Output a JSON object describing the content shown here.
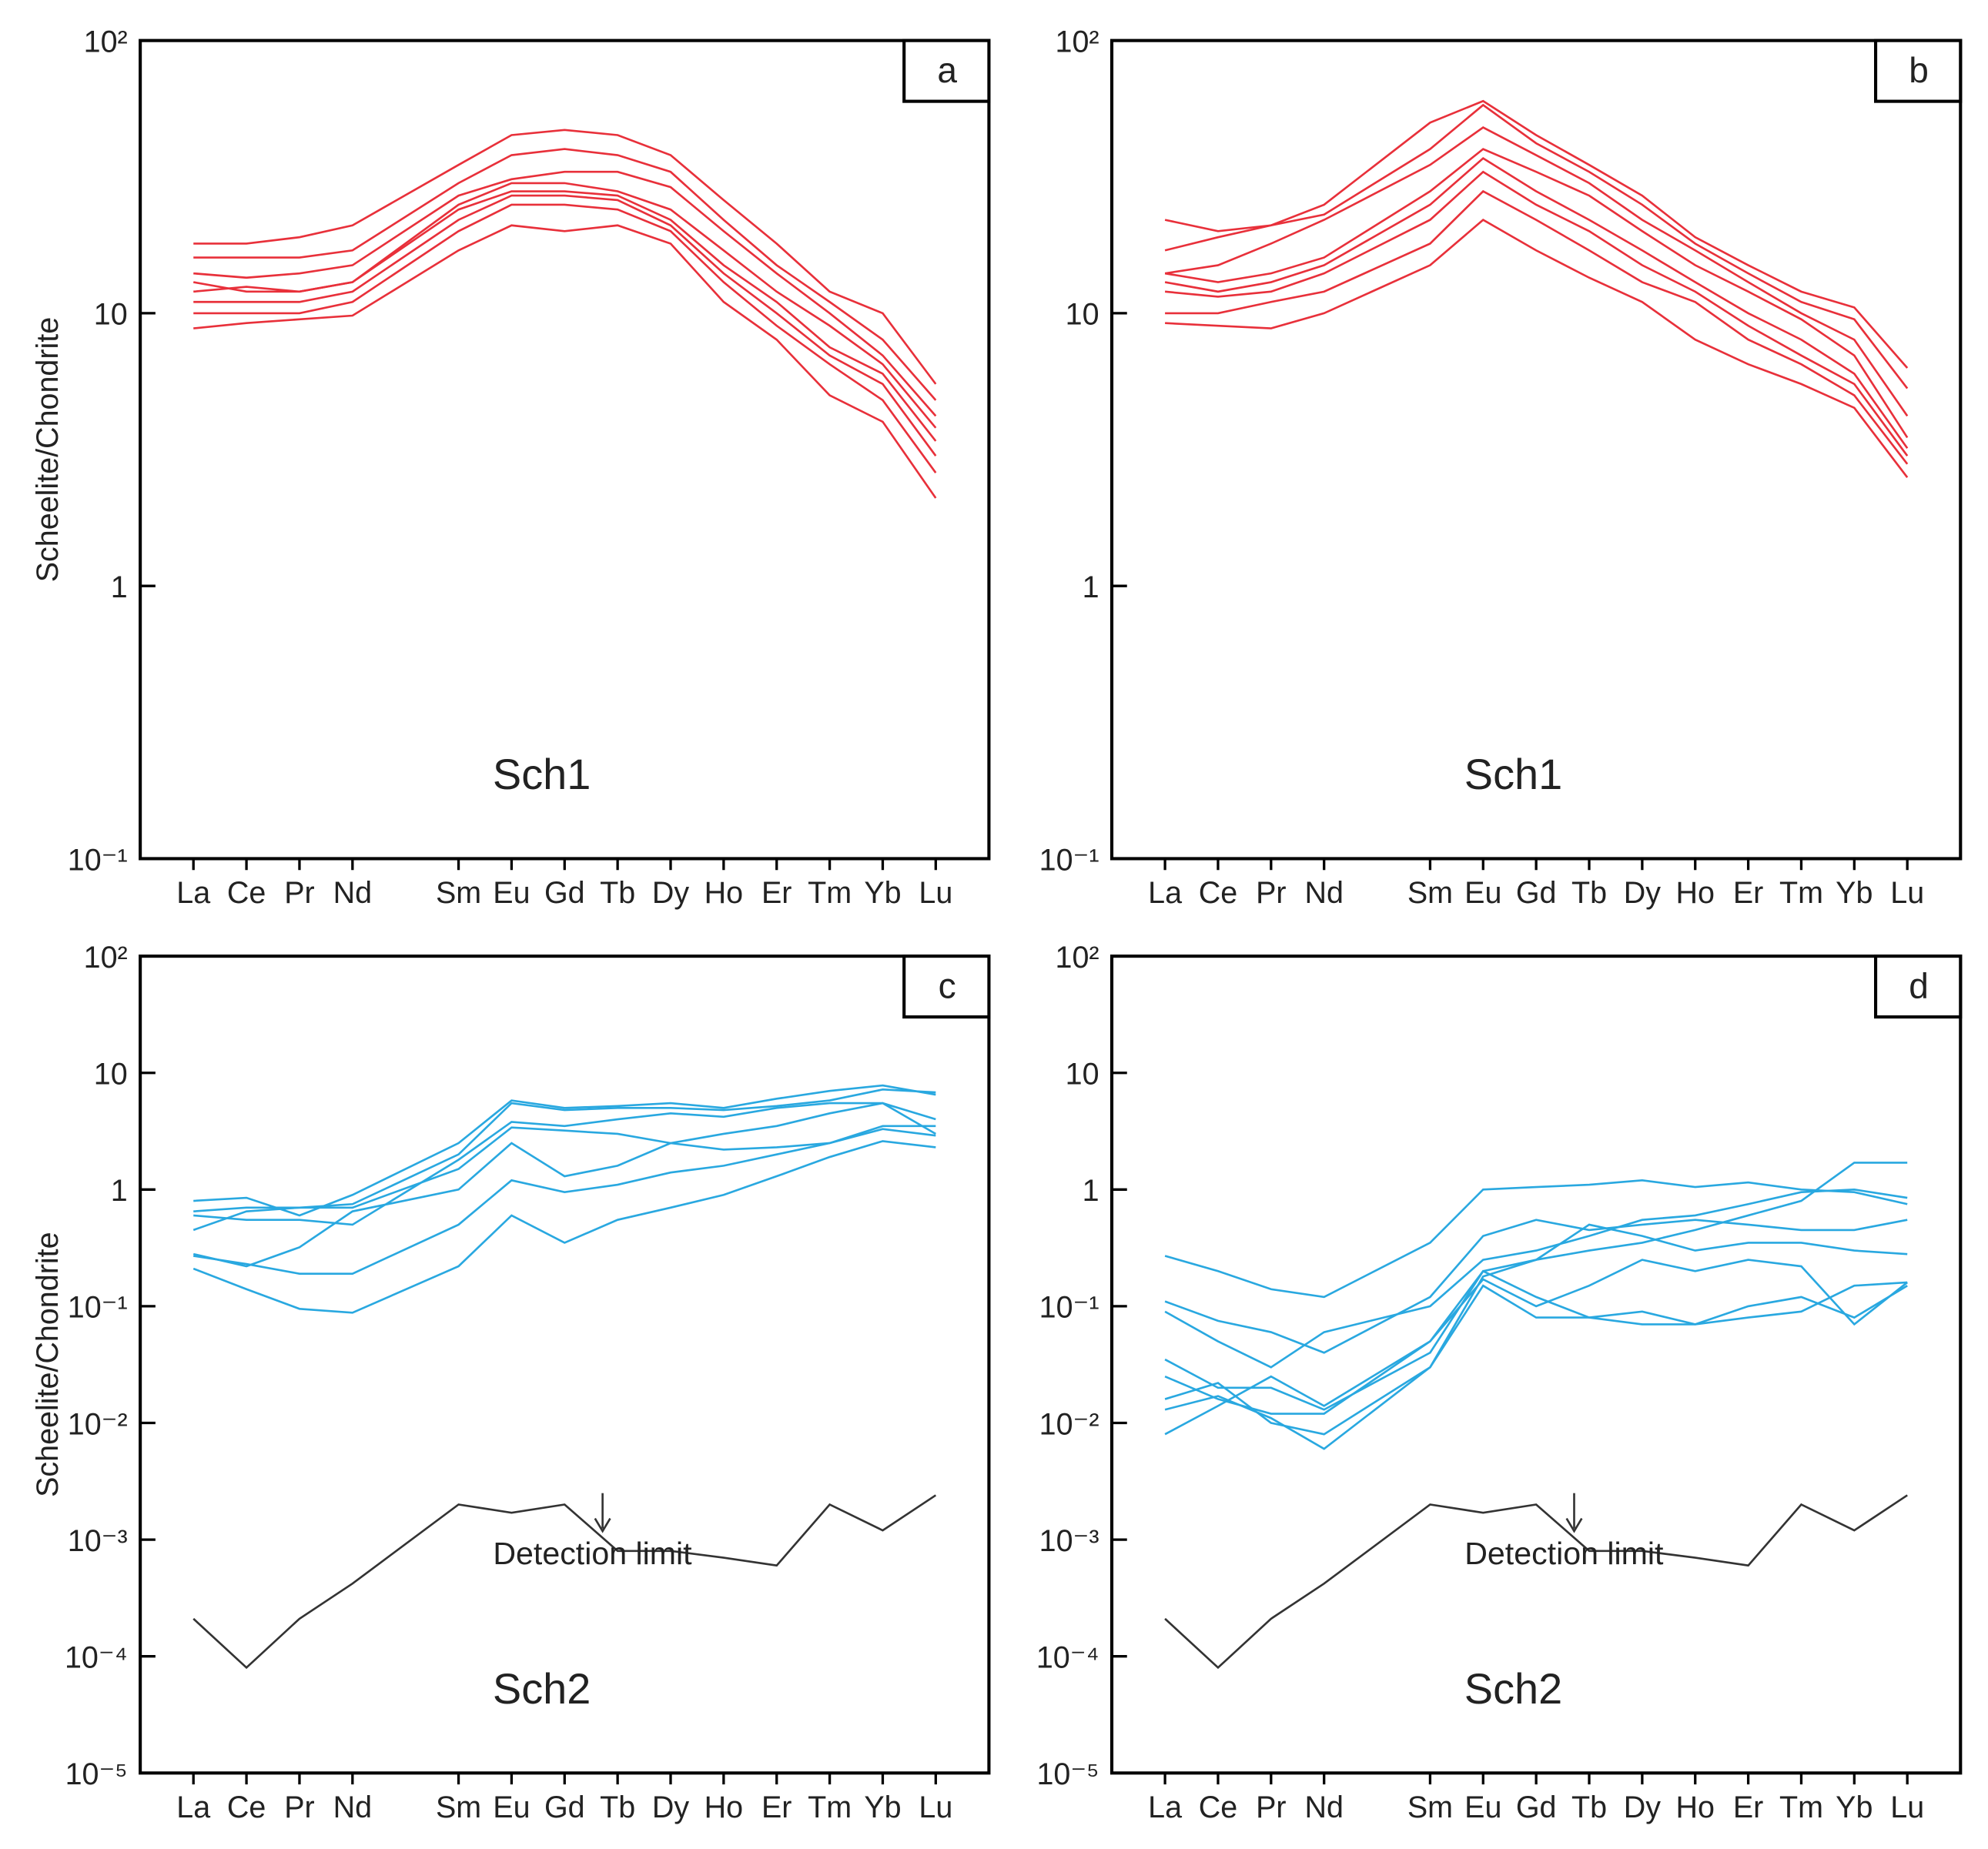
{
  "chart_data": [
    {
      "type": "line",
      "panel_label": "a",
      "label": "Sch1",
      "ylabel": "Scheelite/Chondrite",
      "log_scale": true,
      "categories": [
        "La",
        "Ce",
        "Pr",
        "Nd",
        "Sm",
        "Eu",
        "Gd",
        "Tb",
        "Dy",
        "Ho",
        "Er",
        "Tm",
        "Yb",
        "Lu"
      ],
      "ylim": [
        0.1,
        100
      ],
      "yticks": [
        {
          "value": 0.1,
          "label": "10⁻¹"
        },
        1,
        10,
        {
          "value": 100,
          "label": "10²"
        }
      ],
      "series": [
        {
          "color": "#e8303a",
          "values": [
            18,
            18,
            19,
            21,
            35,
            45,
            47,
            45,
            38,
            26,
            18,
            12,
            10,
            5.5
          ]
        },
        {
          "color": "#e8303a",
          "values": [
            16,
            16,
            16,
            17,
            30,
            38,
            40,
            38,
            33,
            22,
            15,
            11,
            8,
            4.8
          ]
        },
        {
          "color": "#e8303a",
          "values": [
            14,
            13.5,
            14,
            15,
            27,
            31,
            33,
            33,
            29,
            20,
            14,
            10,
            7,
            4.2
          ]
        },
        {
          "color": "#e8303a",
          "values": [
            13,
            12,
            12,
            13,
            25,
            30,
            30,
            28,
            24,
            17,
            12,
            9,
            6.5,
            3.8
          ]
        },
        {
          "color": "#e8303a",
          "values": [
            12,
            12.5,
            12,
            13,
            24,
            28,
            28,
            27,
            22,
            15,
            11,
            7.5,
            6,
            3.4
          ]
        },
        {
          "color": "#e8303a",
          "values": [
            11,
            11,
            11,
            12,
            22,
            27,
            27,
            26,
            21,
            14,
            10,
            7,
            5.5,
            3
          ]
        },
        {
          "color": "#e8303a",
          "values": [
            10,
            10,
            10,
            11,
            20,
            25,
            25,
            24,
            20,
            13,
            9,
            6.5,
            4.8,
            2.6
          ]
        },
        {
          "color": "#e8303a",
          "values": [
            8.8,
            9.2,
            9.5,
            9.8,
            17,
            21,
            20,
            21,
            18,
            11,
            8,
            5,
            4,
            2.1
          ]
        }
      ]
    },
    {
      "type": "line",
      "panel_label": "b",
      "label": "Sch1",
      "log_scale": true,
      "categories": [
        "La",
        "Ce",
        "Pr",
        "Nd",
        "Sm",
        "Eu",
        "Gd",
        "Tb",
        "Dy",
        "Ho",
        "Er",
        "Tm",
        "Yb",
        "Lu"
      ],
      "ylim": [
        0.1,
        100
      ],
      "yticks": [
        {
          "value": 0.1,
          "label": "10⁻¹"
        },
        1,
        10,
        {
          "value": 100,
          "label": "10²"
        }
      ],
      "series": [
        {
          "color": "#e8303a",
          "values": [
            22,
            20,
            21,
            25,
            50,
            60,
            45,
            35,
            27,
            19,
            15,
            12,
            10.5,
            6.3
          ]
        },
        {
          "color": "#e8303a",
          "values": [
            17,
            19,
            21,
            23,
            40,
            58,
            42,
            33,
            25,
            18,
            14,
            11,
            9.5,
            5.3
          ]
        },
        {
          "color": "#e8303a",
          "values": [
            14,
            15,
            18,
            22,
            35,
            48,
            38,
            30,
            22,
            17,
            13,
            10,
            8,
            4.2
          ]
        },
        {
          "color": "#e8303a",
          "values": [
            14,
            13,
            14,
            16,
            28,
            40,
            33,
            27,
            20,
            15,
            12,
            9.5,
            7,
            3.5
          ]
        },
        {
          "color": "#e8303a",
          "values": [
            13,
            12,
            13,
            15,
            25,
            37,
            28,
            22,
            17,
            13,
            10,
            8,
            6,
            3.2
          ]
        },
        {
          "color": "#e8303a",
          "values": [
            12,
            11.5,
            12,
            14,
            22,
            33,
            25,
            20,
            15,
            12,
            9,
            7,
            5.5,
            3
          ]
        },
        {
          "color": "#e8303a",
          "values": [
            10,
            10,
            11,
            12,
            18,
            28,
            22,
            17,
            13,
            11,
            8,
            6.5,
            5,
            2.8
          ]
        },
        {
          "color": "#e8303a",
          "values": [
            9.2,
            9,
            8.8,
            10,
            15,
            22,
            17,
            13.5,
            11,
            8,
            6.5,
            5.5,
            4.5,
            2.5
          ]
        }
      ]
    },
    {
      "type": "line",
      "panel_label": "c",
      "label": "Sch2",
      "ylabel": "Scheelite/Chondrite",
      "annotation": "Detection limit",
      "log_scale": true,
      "categories": [
        "La",
        "Ce",
        "Pr",
        "Nd",
        "Sm",
        "Eu",
        "Gd",
        "Tb",
        "Dy",
        "Ho",
        "Er",
        "Tm",
        "Yb",
        "Lu"
      ],
      "ylim": [
        1e-05,
        100
      ],
      "yticks": [
        {
          "value": 1e-05,
          "label": "10⁻⁵"
        },
        {
          "value": 0.0001,
          "label": "10⁻⁴"
        },
        {
          "value": 0.001,
          "label": "10⁻³"
        },
        {
          "value": 0.01,
          "label": "10⁻²"
        },
        {
          "value": 0.1,
          "label": "10⁻¹"
        },
        1,
        10,
        {
          "value": 100,
          "label": "10²"
        }
      ],
      "series": [
        {
          "color": "#29a8e0",
          "values": [
            0.8,
            0.85,
            0.6,
            0.9,
            2.5,
            5.8,
            5.0,
            5.2,
            5.5,
            5.0,
            6.0,
            7.0,
            7.8,
            6.5
          ]
        },
        {
          "color": "#29a8e0",
          "values": [
            0.65,
            0.7,
            0.7,
            0.75,
            2.0,
            5.5,
            4.8,
            5.0,
            5.0,
            4.8,
            5.2,
            5.8,
            7.2,
            6.8
          ]
        },
        {
          "color": "#29a8e0",
          "values": [
            0.6,
            0.55,
            0.55,
            0.5,
            1.8,
            3.8,
            3.5,
            4.0,
            4.5,
            4.2,
            5.0,
            5.5,
            5.5,
            4.0
          ]
        },
        {
          "color": "#29a8e0",
          "values": [
            0.45,
            0.65,
            0.7,
            0.7,
            1.5,
            3.4,
            3.2,
            3.0,
            2.5,
            2.2,
            2.3,
            2.5,
            3.5,
            3.5
          ]
        },
        {
          "color": "#29a8e0",
          "values": [
            0.28,
            0.22,
            0.32,
            0.65,
            1.0,
            2.5,
            1.3,
            1.6,
            2.5,
            3.0,
            3.5,
            4.5,
            5.5,
            3.0
          ]
        },
        {
          "color": "#29a8e0",
          "values": [
            0.27,
            0.23,
            0.19,
            0.19,
            0.5,
            1.2,
            0.95,
            1.1,
            1.4,
            1.6,
            2.0,
            2.5,
            3.3,
            2.9
          ]
        },
        {
          "color": "#29a8e0",
          "values": [
            0.21,
            0.14,
            0.095,
            0.088,
            0.22,
            0.6,
            0.35,
            0.55,
            0.7,
            0.9,
            1.3,
            1.9,
            2.6,
            2.3
          ]
        },
        {
          "color": "#333333",
          "values": [
            0.00021,
            8e-05,
            0.00021,
            0.00042,
            0.002,
            0.0017,
            0.002,
            0.0008,
            0.0008,
            0.0007,
            0.0006,
            0.002,
            0.0012,
            0.0024
          ]
        }
      ]
    },
    {
      "type": "line",
      "panel_label": "d",
      "label": "Sch2",
      "annotation": "Detection limit",
      "log_scale": true,
      "categories": [
        "La",
        "Ce",
        "Pr",
        "Nd",
        "Sm",
        "Eu",
        "Gd",
        "Tb",
        "Dy",
        "Ho",
        "Er",
        "Tm",
        "Yb",
        "Lu"
      ],
      "ylim": [
        1e-05,
        100
      ],
      "yticks": [
        {
          "value": 1e-05,
          "label": "10⁻⁵"
        },
        {
          "value": 0.0001,
          "label": "10⁻⁴"
        },
        {
          "value": 0.001,
          "label": "10⁻³"
        },
        {
          "value": 0.01,
          "label": "10⁻²"
        },
        {
          "value": 0.1,
          "label": "10⁻¹"
        },
        1,
        10,
        {
          "value": 100,
          "label": "10²"
        }
      ],
      "series": [
        {
          "color": "#29a8e0",
          "values": [
            0.27,
            0.2,
            0.14,
            0.12,
            0.35,
            1.0,
            1.05,
            1.1,
            1.2,
            1.05,
            1.15,
            1.0,
            0.95,
            0.75
          ]
        },
        {
          "color": "#29a8e0",
          "values": [
            0.11,
            0.075,
            0.06,
            0.04,
            0.12,
            0.4,
            0.55,
            0.45,
            0.5,
            0.55,
            0.5,
            0.45,
            0.45,
            0.55
          ]
        },
        {
          "color": "#29a8e0",
          "values": [
            0.09,
            0.05,
            0.03,
            0.06,
            0.1,
            0.25,
            0.3,
            0.4,
            0.55,
            0.6,
            0.75,
            0.95,
            1.0,
            0.85
          ]
        },
        {
          "color": "#29a8e0",
          "values": [
            0.035,
            0.02,
            0.02,
            0.013,
            0.04,
            0.2,
            0.25,
            0.5,
            0.4,
            0.3,
            0.35,
            0.35,
            0.3,
            0.28
          ]
        },
        {
          "color": "#29a8e0",
          "values": [
            0.025,
            0.016,
            0.012,
            0.012,
            0.05,
            0.17,
            0.1,
            0.15,
            0.25,
            0.2,
            0.25,
            0.22,
            0.07,
            0.16
          ]
        },
        {
          "color": "#29a8e0",
          "values": [
            0.013,
            0.017,
            0.011,
            0.006,
            0.03,
            0.15,
            0.08,
            0.08,
            0.09,
            0.07,
            0.1,
            0.12,
            0.08,
            0.15
          ]
        },
        {
          "color": "#29a8e0",
          "values": [
            0.008,
            0.014,
            0.025,
            0.014,
            0.05,
            0.2,
            0.12,
            0.08,
            0.07,
            0.07,
            0.08,
            0.09,
            0.15,
            0.16
          ]
        },
        {
          "color": "#29a8e0",
          "values": [
            0.016,
            0.022,
            0.01,
            0.008,
            0.03,
            0.18,
            0.25,
            0.3,
            0.35,
            0.45,
            0.6,
            0.8,
            1.7,
            1.7
          ]
        },
        {
          "color": "#333333",
          "values": [
            0.00021,
            8e-05,
            0.00021,
            0.00042,
            0.002,
            0.0017,
            0.002,
            0.0008,
            0.0008,
            0.0007,
            0.0006,
            0.002,
            0.0012,
            0.0024
          ]
        }
      ]
    }
  ]
}
